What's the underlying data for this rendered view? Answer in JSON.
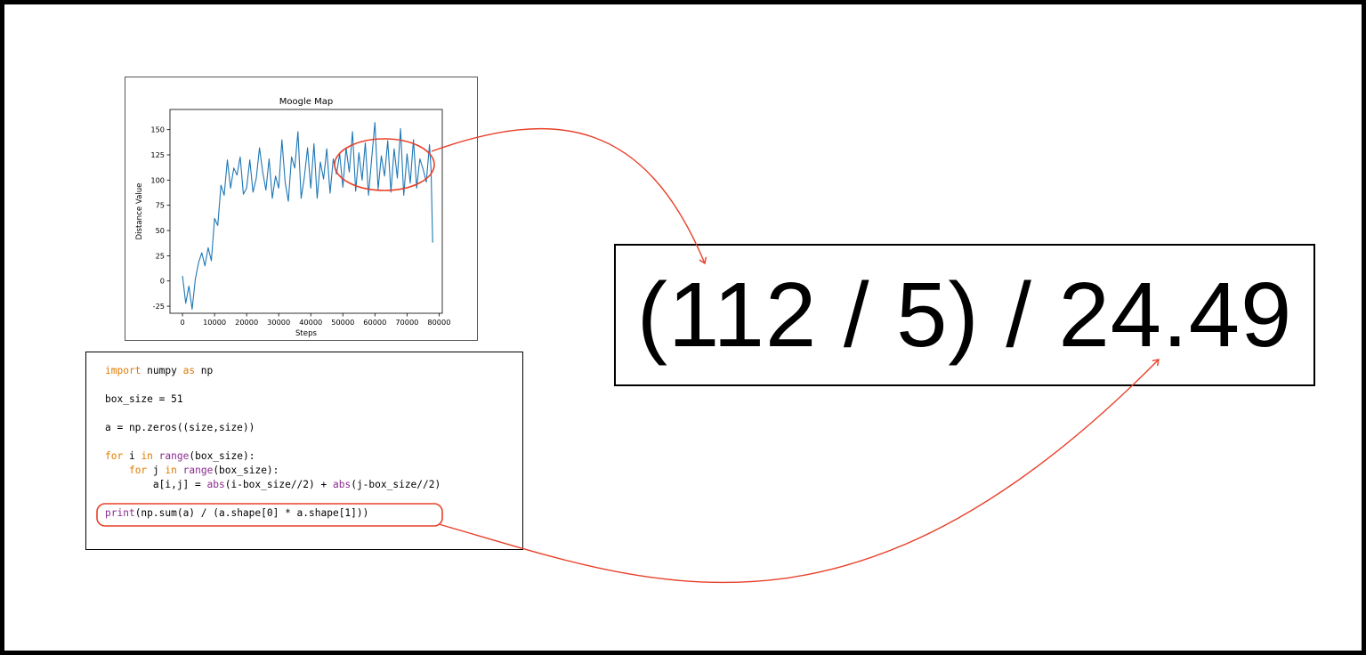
{
  "chart_data": {
    "type": "line",
    "title": "Moogle Map",
    "xlabel": "Steps",
    "ylabel": "Distance Value",
    "xlim": [
      -3900,
      81000
    ],
    "ylim": [
      -32,
      170
    ],
    "xticks": [
      0,
      10000,
      20000,
      30000,
      40000,
      50000,
      60000,
      70000,
      80000
    ],
    "yticks": [
      -25,
      0,
      25,
      50,
      75,
      100,
      125,
      150
    ],
    "grid": false,
    "series": [
      {
        "color": "#1f77b4",
        "x": [
          0,
          1000,
          2000,
          3000,
          4000,
          5000,
          6000,
          7000,
          8000,
          9000,
          10000,
          11000,
          12000,
          13000,
          14000,
          15000,
          16000,
          17000,
          18000,
          19000,
          20000,
          21000,
          22000,
          23000,
          24000,
          25000,
          26000,
          27000,
          28000,
          29000,
          30000,
          31000,
          32000,
          33000,
          34000,
          35000,
          36000,
          37000,
          38000,
          39000,
          40000,
          41000,
          42000,
          43000,
          44000,
          45000,
          46000,
          47000,
          48000,
          49000,
          50000,
          51000,
          52000,
          53000,
          54000,
          55000,
          56000,
          57000,
          58000,
          59000,
          60000,
          61000,
          62000,
          63000,
          64000,
          65000,
          66000,
          67000,
          68000,
          69000,
          70000,
          71000,
          72000,
          73000,
          74000,
          75000,
          76000,
          77000,
          77500,
          78000
        ],
        "y": [
          5,
          -22,
          -5,
          -28,
          2,
          18,
          28,
          15,
          33,
          20,
          62,
          55,
          95,
          85,
          120,
          92,
          112,
          105,
          123,
          86,
          92,
          120,
          88,
          102,
          132,
          108,
          90,
          121,
          82,
          104,
          92,
          140,
          98,
          79,
          123,
          112,
          148,
          82,
          103,
          132,
          92,
          136,
          82,
          118,
          101,
          131,
          87,
          121,
          106,
          126,
          93,
          132,
          108,
          148,
          89,
          127,
          100,
          137,
          85,
          122,
          157,
          91,
          124,
          104,
          139,
          88,
          131,
          102,
          151,
          85,
          126,
          97,
          140,
          92,
          121,
          111,
          98,
          135,
          110,
          38
        ]
      }
    ]
  },
  "code": {
    "lines": [
      {
        "segments": [
          {
            "text": "import",
            "style": "keyword"
          },
          {
            "text": " numpy ",
            "style": "plain"
          },
          {
            "text": "as",
            "style": "keyword"
          },
          {
            "text": " np",
            "style": "plain"
          }
        ]
      },
      {
        "segments": [
          {
            "text": "box_size = 51",
            "style": "plain"
          }
        ]
      },
      {
        "segments": [
          {
            "text": "a = np.zeros((size,size))",
            "style": "plain"
          }
        ]
      },
      {
        "segments": [
          {
            "text": "for",
            "style": "keyword"
          },
          {
            "text": " i ",
            "style": "plain"
          },
          {
            "text": "in",
            "style": "keyword"
          },
          {
            "text": " ",
            "style": "plain"
          },
          {
            "text": "range",
            "style": "builtin"
          },
          {
            "text": "(box_size):",
            "style": "plain"
          }
        ]
      },
      {
        "segments": [
          {
            "text": "    ",
            "style": "plain"
          },
          {
            "text": "for",
            "style": "keyword"
          },
          {
            "text": " j ",
            "style": "plain"
          },
          {
            "text": "in",
            "style": "keyword"
          },
          {
            "text": " ",
            "style": "plain"
          },
          {
            "text": "range",
            "style": "builtin"
          },
          {
            "text": "(box_size):",
            "style": "plain"
          }
        ]
      },
      {
        "segments": [
          {
            "text": "        a[i,j] = ",
            "style": "plain"
          },
          {
            "text": "abs",
            "style": "builtin"
          },
          {
            "text": "(i-box_size//2) + ",
            "style": "plain"
          },
          {
            "text": "abs",
            "style": "builtin"
          },
          {
            "text": "(j-box_size//2)",
            "style": "plain"
          }
        ]
      },
      {
        "segments": [
          {
            "text": "print",
            "style": "builtin"
          },
          {
            "text": "(np.sum(a) / (a.shape[0] * a.shape[1]))",
            "style": "plain"
          }
        ]
      }
    ]
  },
  "result": {
    "expression": "(112 / 5) / 24.49"
  },
  "colors": {
    "annotation": "#e8402a",
    "keyword": "#e07b00",
    "builtin": "#8b2a8f",
    "series": "#1f77b4"
  }
}
